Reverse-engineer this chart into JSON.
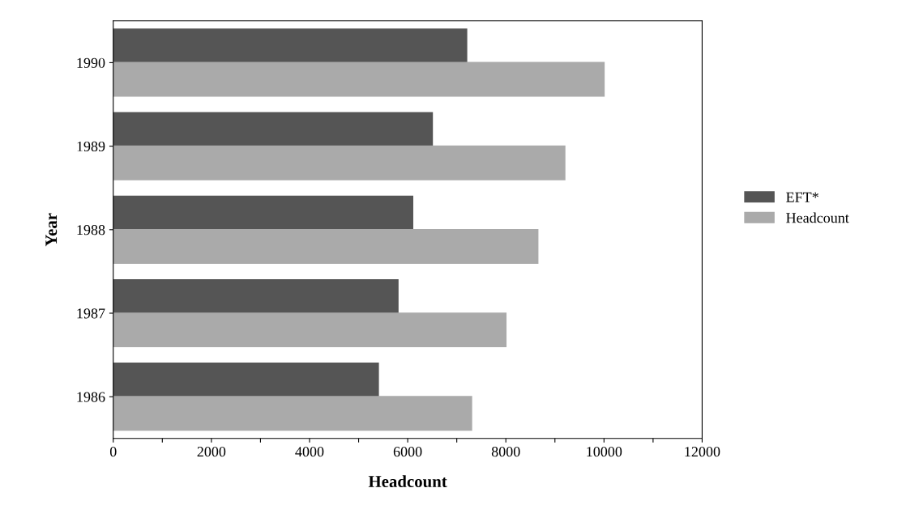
{
  "chart_data": {
    "type": "bar",
    "orientation": "horizontal",
    "xlabel": "Headcount",
    "ylabel": "Year",
    "categories": [
      "1990",
      "1989",
      "1988",
      "1987",
      "1986"
    ],
    "series": [
      {
        "name": "EFT*",
        "color": "#555555",
        "values": [
          7200,
          6500,
          6100,
          5800,
          5400
        ]
      },
      {
        "name": "Headcount",
        "color": "#aaaaaa",
        "values": [
          10000,
          9200,
          8650,
          8000,
          7300
        ]
      }
    ],
    "xlim": [
      0,
      12000
    ],
    "xticks": [
      0,
      {
        "value": 1000,
        "label": null
      },
      2000,
      {
        "value": 3000,
        "label": null
      },
      4000,
      {
        "value": 5000,
        "label": null
      },
      6000,
      {
        "value": 7000,
        "label": null
      },
      8000,
      {
        "value": 9000,
        "label": null
      },
      10000,
      {
        "value": 11000,
        "label": null
      },
      12000
    ],
    "legend": "right",
    "grid": false
  }
}
